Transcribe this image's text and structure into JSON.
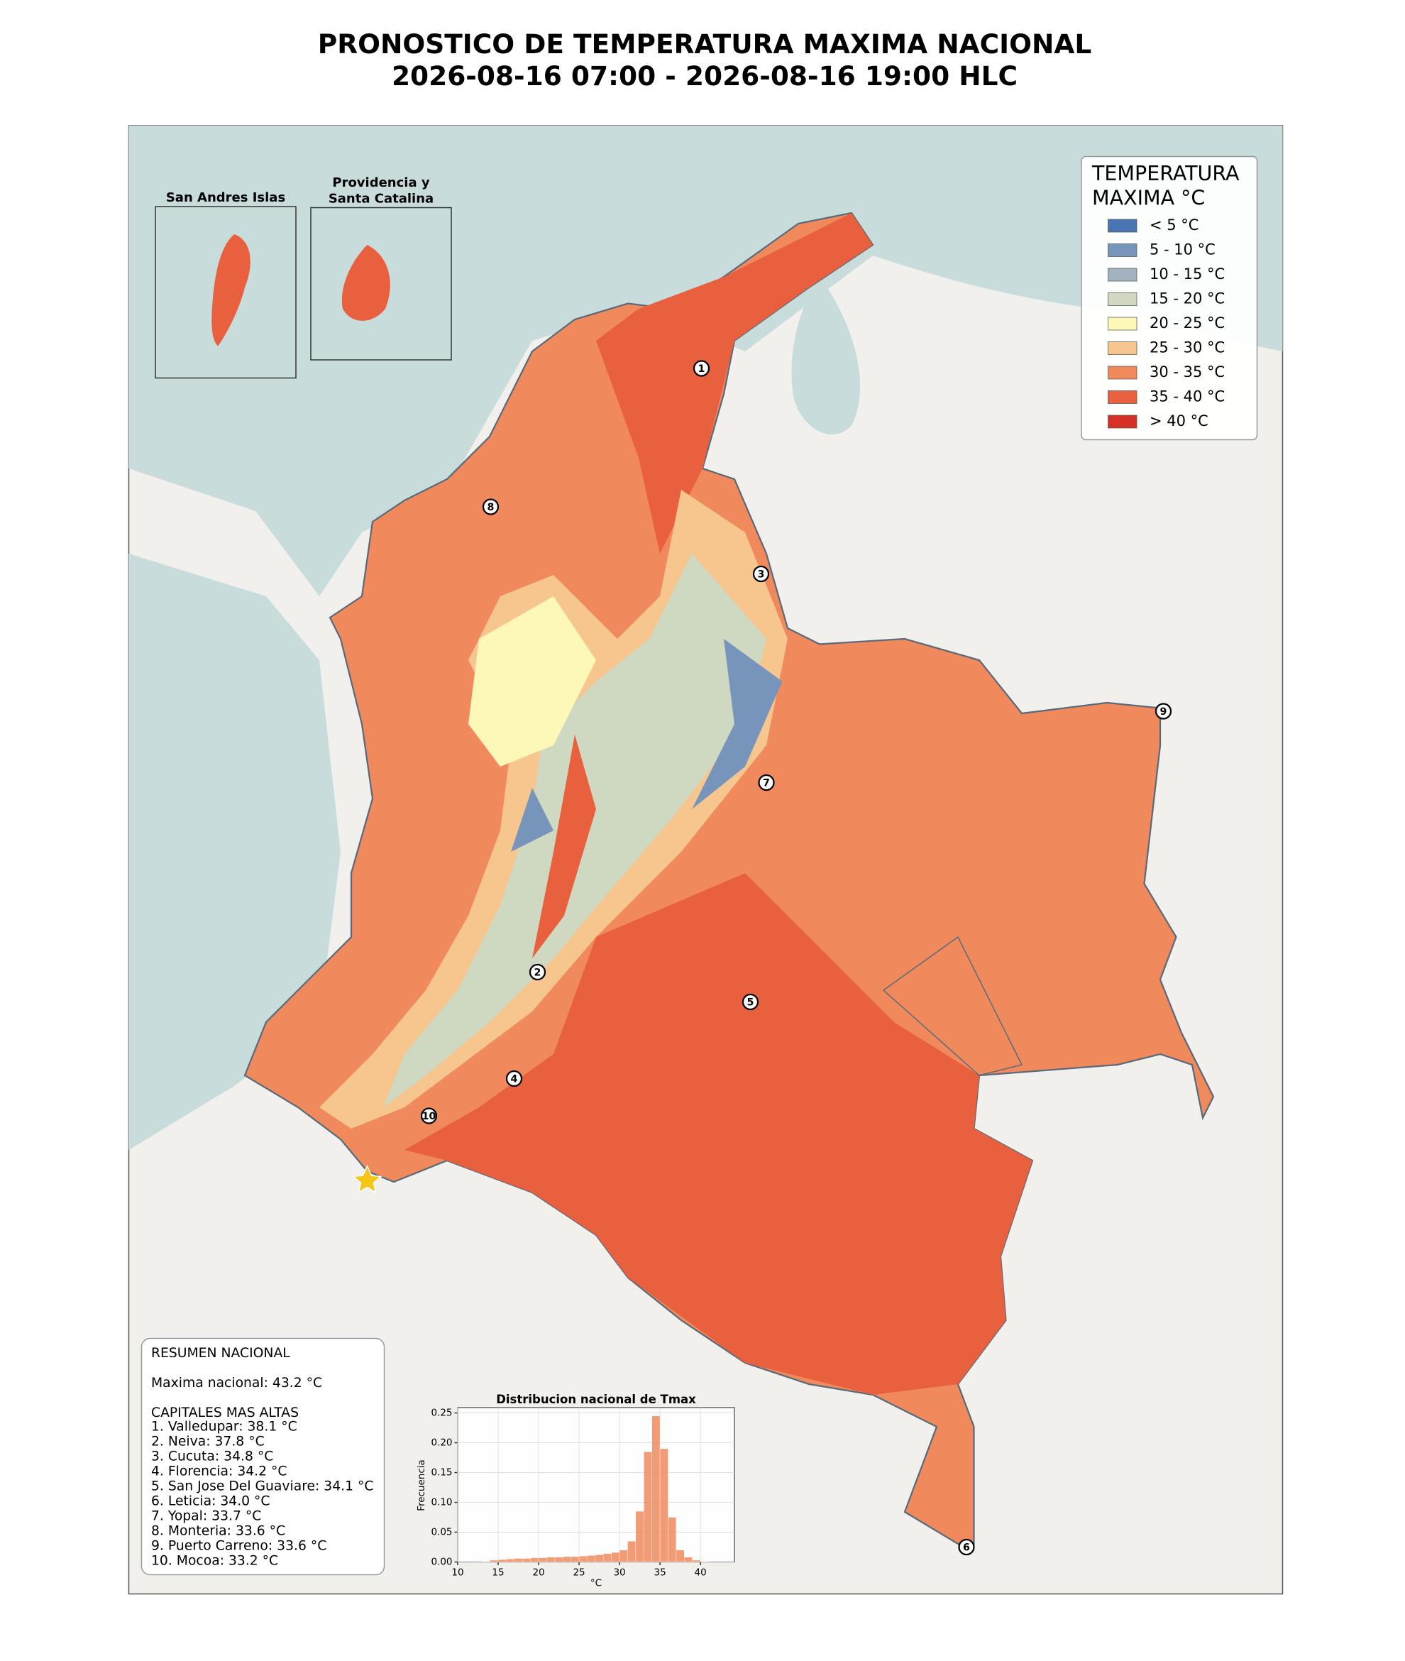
{
  "title": [
    "PRONOSTICO DE TEMPERATURA MAXIMA NACIONAL",
    "2026-08-16 07:00 - 2026-08-16 19:00 HLC"
  ],
  "insets": {
    "san_andres": [
      "San Andres Islas"
    ],
    "providencia": [
      "Providencia y",
      "Santa Catalina"
    ]
  },
  "legend": {
    "title": [
      "TEMPERATURA",
      "MAXIMA °C"
    ],
    "items": [
      {
        "label": "< 5 °C",
        "color": "#4a74b4"
      },
      {
        "label": "5 - 10 °C",
        "color": "#7795bb"
      },
      {
        "label": "10 - 15 °C",
        "color": "#a2b3bf"
      },
      {
        "label": "15 - 20 °C",
        "color": "#cfd8c0"
      },
      {
        "label": "20 - 25 °C",
        "color": "#fdf7b8"
      },
      {
        "label": "25 - 30 °C",
        "color": "#f7c68e"
      },
      {
        "label": "30 - 35 °C",
        "color": "#f08a5d"
      },
      {
        "label": "35 - 40 °C",
        "color": "#e8603e"
      },
      {
        "label": "> 40 °C",
        "color": "#d73027"
      }
    ]
  },
  "markers": [
    "1",
    "2",
    "3",
    "4",
    "5",
    "6",
    "7",
    "8",
    "9",
    "10"
  ],
  "summary": {
    "title": "RESUMEN NACIONAL",
    "max": "Maxima nacional: 43.2 °C",
    "subtitle": "CAPITALES MAS ALTAS",
    "lines": [
      "1. Valledupar: 38.1 °C",
      "2. Neiva: 37.8 °C",
      "3. Cucuta: 34.8 °C",
      "4. Florencia: 34.2 °C",
      "5. San Jose Del Guaviare: 34.1 °C",
      "6. Leticia: 34.0 °C",
      "7. Yopal: 33.7 °C",
      "8. Monteria: 33.6 °C",
      "9. Puerto Carreno: 33.6 °C",
      "10. Mocoa: 33.2 °C"
    ]
  },
  "chart_data": {
    "type": "histogram",
    "title": "Distribucion nacional de Tmax",
    "xlabel": "°C",
    "ylabel": "Frecuencia",
    "bins": [
      13,
      14,
      15,
      16,
      17,
      18,
      19,
      20,
      21,
      22,
      23,
      24,
      25,
      26,
      27,
      28,
      29,
      30,
      31,
      32,
      33,
      34,
      35,
      36,
      37,
      38,
      39,
      40,
      41
    ],
    "values": [
      0.001,
      0.003,
      0.004,
      0.005,
      0.006,
      0.006,
      0.007,
      0.007,
      0.008,
      0.008,
      0.009,
      0.009,
      0.01,
      0.011,
      0.012,
      0.014,
      0.016,
      0.02,
      0.035,
      0.085,
      0.185,
      0.245,
      0.19,
      0.075,
      0.02,
      0.008,
      0.003,
      0.001
    ],
    "color": "#f08a5d",
    "xlim": [
      10,
      44.2
    ],
    "ylim": [
      0,
      0.259
    ],
    "xticks": [
      10,
      15,
      20,
      25,
      30,
      35,
      40
    ],
    "yticks": [
      {
        "value": 0,
        "label": "0.00"
      },
      {
        "value": 0.05,
        "label": "0.05"
      },
      {
        "value": 0.1,
        "label": "0.10"
      },
      {
        "value": 0.15,
        "label": "0.15"
      },
      {
        "value": 0.2,
        "label": "0.20"
      },
      {
        "value": 0.25,
        "label": "0.25"
      }
    ],
    "grid": true
  }
}
